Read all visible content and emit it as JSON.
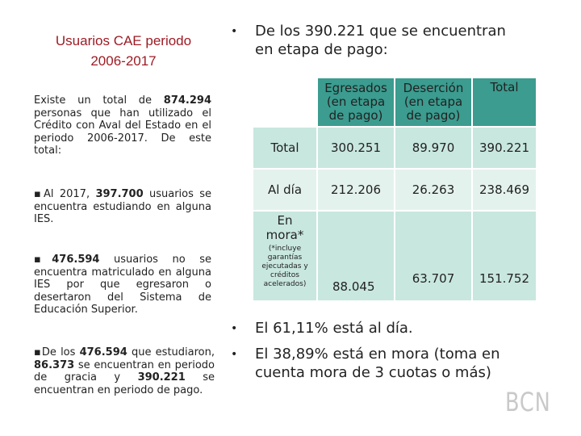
{
  "left": {
    "title_line1": "Usuarios CAE periodo",
    "title_line2": "2006-2017",
    "p1_a": "Existe un total de ",
    "p1_b": "874.294",
    "p1_c": " personas que han utilizado el Crédito con Aval del Estado en el periodo 2006-2017. De este total:",
    "p2_a": "▪Al 2017, ",
    "p2_b": "397.700",
    "p2_c": " usuarios se encuentra estudiando en alguna IES.",
    "p3_a": "▪",
    "p3_b": "476.594",
    "p3_c": " usuarios no se encuentra matriculado en alguna IES por que egresaron o desertaron del Sistema de Educación Superior.",
    "p4_a": "▪De los ",
    "p4_b": "476.594",
    "p4_c": " que estudiaron, ",
    "p4_d": "86.373",
    "p4_e": " se encuentran en periodo de gracia y ",
    "p4_f": "390.221",
    "p4_g": " se encuentran en periodo de pago."
  },
  "right": {
    "bullet_top": "•",
    "intro_line1": "De los 390.221 que se encuentran",
    "intro_line2": "en etapa de pago:",
    "table": {
      "col_headers": [
        {
          "line1": "Egresados",
          "line2": "(en etapa",
          "line3": "de pago)"
        },
        {
          "line1": "Deserción",
          "line2": "(en etapa",
          "line3": "de pago)"
        },
        {
          "line1": "Total",
          "line2": "",
          "line3": ""
        }
      ],
      "rows": [
        {
          "label": "Total",
          "values": [
            "300.251",
            "89.970",
            "390.221"
          ]
        },
        {
          "label": "Al día",
          "values": [
            "212.206",
            "26.263",
            "238.469"
          ]
        },
        {
          "label_line1": "En",
          "label_line2": "mora*",
          "note": "(*incluye garantías ejecutadas y créditos acelerados)",
          "values": [
            "88.045",
            "63.707",
            "151.752"
          ]
        }
      ]
    },
    "bullet2": "El 61,11% está al día.",
    "bullet3_line1": "El 38,89% está en mora (toma en",
    "bullet3_line2": "cuenta mora de 3 cuotas o más)"
  },
  "logo": "BCN"
}
